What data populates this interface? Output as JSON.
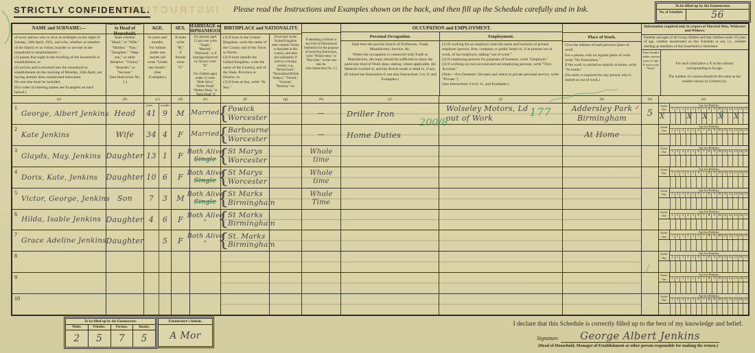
{
  "form": {
    "confidential": "STRICTLY CONFIDENTIAL.",
    "instruction": "Please read the Instructions and Examples shown on the back, and then fill up the Schedule carefully and in Ink.",
    "bleed_text": "INSTRUCTIONS",
    "schedule_box": {
      "title": "To be filled up by the Enumerator.",
      "label": "No. of Schedule.",
      "value": "56"
    },
    "brace": "{",
    "columns": {
      "name": {
        "title": "NAME and SURNAME:—",
        "desc": "of every person who is alive at midnight on the night of Sunday, 24th April, 1921, and who, whether as member of the family or as visitor, boarder or servant in the household or establishment:—\n(1) passes that night in the dwelling of the household or establishment, or\n(2) arrives and is received into the household or establishment on the morning of Monday, 25th April, not having already been enumerated elsewhere.\nNo one else must be included.\n(For order of entering names see Examples on back hereof.)"
      },
      "relationship": {
        "title": "RELATIONSHIP to Head of Household.",
        "desc": "State whether \"Head,\" or \"Wife,\" \"Mother,\" \"Son,\" \"Daughter,\" \"Step-son,\" or other Relative, \"Visitor,\" \"Boarder,\" or \"Servant.\"\n(See Instruction No. 1.)"
      },
      "age": {
        "title": "AGE.",
        "desc": "In years and months.\nFor infants under one month old write \"Under one month.\"\n(See Examples.)",
        "sub_years": "years.",
        "sub_months": "months."
      },
      "sex": {
        "title": "SEX.",
        "desc": "If male write \"M,\"\nif female write \"F.\""
      },
      "marriage": {
        "title": "MARRIAGE or ORPHANHOOD.",
        "desc": "For persons aged 15 and over write \"Single,\" \"Married,\" \"Widowed,\" or if marriage dissolved by divorce write \"D.\"\n—\nFor children aged under 15 write \"Both Alive,\" \"Father Dead,\" \"Mother Dead,\" or \"Both Dead\" if both parents be dead."
      },
      "birthplace_group": {
        "title": "BIRTHPLACE and NATIONALITY."
      },
      "birthplace": {
        "desc": "(1) If born in the United Kingdom, write the name of the County and of the Town or Parish.\n(2) If born outside the United Kingdom, write the name of the Country, and of the State, Province or District, or\n(3) If born at Sea, write \"At Sea.\""
      },
      "nationality": {
        "desc": "If not born in the United Kingdom state whether Visitor or Resident in this country, and state also nationality if born in a foreign country, e.g., \"British born,\" \"Naturalised British Subject,\" \"French,\" \"German,\" \"Russian,\" etc."
      },
      "education": {
        "desc": "If attending a School or any kind of Educational Institution for the purpose of receiving Instruction, write \"Whole-time,\" or \"Part-time,\" as the case may be.\n(See Instruction No. 2.)"
      },
      "occupation_group": {
        "title": "OCCUPATION and EMPLOYMENT."
      },
      "personal_occupation": {
        "title": "Personal Occupation.",
        "desc": "State here the precise branch of Profession, Trade, Manufacture, Service, &c.\nWhere the occupation is connected with Trade or Manufacture, the reply should be sufficient to show the particular kind of Work done, stating, where applicable, the Material worked in, and the Article made or dealt in, if any.\n(If retired see Instruction 6; see also Instructions 3 to 11 and Examples.)"
      },
      "employment": {
        "title": "Employment.",
        "desc": "(1) If working for an employer state the name and business of present employer (person, firm, company or public body) or, if at present out of work, of last employer, adding \"out of work.\"\n(2) If employing persons for purposes of business, write \"Employer.\"\n(3) If working on own account and not employing persons, write \"Own Account.\"\n(Note.—For Domestic Servants and others in private personal service, write \"Private.\")\n(See Instructions 3 to 8, 11, and Examples.)"
      },
      "place_of_work": {
        "title": "Place of Work.",
        "desc": "Give the address of each person's place of work.\nFor a person with no regular place of work write \"No fixed place.\"\nIf the work is carried on mainly at home, write \"At home.\"\n(No entry is required for any person who is retired or out of work.)"
      },
      "info": {
        "heading": "Information required only in respect of Married Men, Widowers and Widows.",
        "sub": "Number and ages of all living children and step children under 16 years of age, whether enumerated on this Schedule or not, i.e., whether residing as members of this household or elsewhere.",
        "total_label": "Total number under sixteen years of age. If none write \"None.\"",
        "note1": "For each child place a X in the column corresponding to its age.",
        "note2": "The number of crosses should be the same as the number shown in Column (n)."
      }
    },
    "letters": [
      "(a)",
      "(b)",
      "(c)",
      "(d)",
      "(e)",
      "(f)",
      "(g)",
      "(h)",
      "(i)",
      "(j)",
      "(k)",
      "(n)",
      "(o)"
    ],
    "age_grid": {
      "under": "Under One",
      "age_header": "Age last Birthday.",
      "numbers": [
        "1",
        "2",
        "3",
        "4",
        "5",
        "6",
        "7",
        "8",
        "9",
        "10",
        "11",
        "12",
        "13",
        "14",
        "15"
      ]
    }
  },
  "rows": [
    {
      "num": "1",
      "name": "George, Albert Jenkins",
      "rel": "Head",
      "years": "41",
      "months": "9",
      "sex": "M",
      "mar1": "Married",
      "mar2": "",
      "brace": "{",
      "birth1": "Powick",
      "birth2": "Worcester",
      "edu1": "—",
      "edu2": "",
      "occ": "Driller Iron",
      "occ_note": "200/8",
      "emp1": "Wolseley Motors, Ld",
      "emp2": "out of Work",
      "emp_note": "177",
      "place1": "Addersley Park",
      "place2": "Birmingham",
      "check": "✓",
      "total": "5",
      "crosses": [
        "u",
        "4",
        "7",
        "10",
        "13"
      ],
      "green_cross": "10"
    },
    {
      "num": "2",
      "name": "Kate Jenkins",
      "rel": "Wife",
      "years": "34",
      "months": "4",
      "sex": "F",
      "mar1": "Married",
      "mar2": "",
      "brace": "{",
      "birth1": "Barbourne",
      "birth2": "Worcester",
      "edu1": "—",
      "edu2": "",
      "occ": "Home Duties",
      "occ_note": "",
      "emp1": "",
      "emp2": "",
      "emp_note": "",
      "place1": "",
      "place2": "At Home",
      "check": "",
      "total": "",
      "crosses": [],
      "green_cross": ""
    },
    {
      "num": "3",
      "name": "Glayds, May. Jenkins",
      "rel": "Daughter",
      "years": "13",
      "months": "1",
      "sex": "F",
      "mar1": "Both Alive",
      "mar2": "Single",
      "brace": "{",
      "birth1": "St Marys",
      "birth2": "Worcester",
      "edu1": "Whole",
      "edu2": "time",
      "occ": "",
      "occ_note": "",
      "emp1": "",
      "emp2": "",
      "emp_note": "",
      "place1": "",
      "place2": "",
      "check": "",
      "total": "",
      "crosses": [],
      "green_cross": ""
    },
    {
      "num": "4",
      "name": "Doris, Kate, Jenkins",
      "rel": "Daughter",
      "years": "10",
      "months": "6",
      "sex": "F",
      "mar1": "Both Alive",
      "mar2": "Single",
      "brace": "{",
      "birth1": "St Marys",
      "birth2": "Worcester",
      "edu1": "Whole",
      "edu2": "time",
      "occ": "",
      "occ_note": "",
      "emp1": "",
      "emp2": "",
      "emp_note": "",
      "place1": "",
      "place2": "",
      "check": "",
      "total": "",
      "crosses": [],
      "green_cross": ""
    },
    {
      "num": "5",
      "name": "Victor, George, Jenkins",
      "rel": "Son",
      "years": "7",
      "months": "3",
      "sex": "M",
      "mar1": "Both Alive",
      "mar2": "Single",
      "brace": "{",
      "birth1": "St Marks",
      "birth2": "Birmingham",
      "edu1": "Whole",
      "edu2": "Time",
      "occ": "",
      "occ_note": "",
      "emp1": "",
      "emp2": "",
      "emp_note": "",
      "place1": "",
      "place2": "",
      "check": "",
      "total": "",
      "crosses": [],
      "green_cross": ""
    },
    {
      "num": "6",
      "name": "Hilda, Isable Jenkins",
      "rel": "Daughter",
      "years": "4",
      "months": "6",
      "sex": "F",
      "mar1": "Both Alive",
      "mar2": "\"",
      "brace": "{",
      "birth1": "St Marks",
      "birth2": "Birmingham",
      "edu1": "",
      "edu2": "",
      "occ": "",
      "occ_note": "",
      "emp1": "",
      "emp2": "",
      "emp_note": "",
      "place1": "",
      "place2": "",
      "check": "",
      "total": "",
      "crosses": [],
      "green_cross": ""
    },
    {
      "num": "7",
      "name": "Grace Adeline Jenkins",
      "rel": "Daughter",
      "years": "",
      "months": "5",
      "sex": "F",
      "mar1": "Both Alive",
      "mar2": "\"",
      "brace": "{",
      "birth1": "St. Marks",
      "birth2": "Birmingham",
      "edu1": "",
      "edu2": "",
      "occ": "",
      "occ_note": "",
      "emp1": "",
      "emp2": "",
      "emp_note": "",
      "place1": "",
      "place2": "",
      "check": "",
      "total": "",
      "crosses": [],
      "green_cross": ""
    },
    {
      "num": "8",
      "name": "",
      "rel": "",
      "years": "",
      "months": "",
      "sex": "",
      "mar1": "",
      "mar2": "",
      "brace": "",
      "birth1": "",
      "birth2": "",
      "edu1": "",
      "edu2": "",
      "occ": "",
      "occ_note": "",
      "emp1": "",
      "emp2": "",
      "emp_note": "",
      "place1": "",
      "place2": "",
      "check": "",
      "total": "",
      "crosses": [],
      "green_cross": ""
    },
    {
      "num": "9",
      "name": "",
      "rel": "",
      "years": "",
      "months": "",
      "sex": "",
      "mar1": "",
      "mar2": "",
      "brace": "",
      "birth1": "",
      "birth2": "",
      "edu1": "",
      "edu2": "",
      "occ": "",
      "occ_note": "",
      "emp1": "",
      "emp2": "",
      "emp_note": "",
      "place1": "",
      "place2": "",
      "check": "",
      "total": "",
      "crosses": [],
      "green_cross": ""
    },
    {
      "num": "10",
      "name": "",
      "rel": "",
      "years": "",
      "months": "",
      "sex": "",
      "mar1": "",
      "mar2": "",
      "brace": "",
      "birth1": "",
      "birth2": "",
      "edu1": "",
      "edu2": "",
      "occ": "",
      "occ_note": "",
      "emp1": "",
      "emp2": "",
      "emp_note": "",
      "place1": "",
      "place2": "",
      "check": "",
      "total": "",
      "crosses": [],
      "green_cross": ""
    }
  ],
  "enumerator": {
    "title": "To be filled up by the Enumerator.",
    "headers": [
      "Males.",
      "Females.",
      "Persons.",
      "Rooms."
    ],
    "values": [
      "2",
      "5",
      "7",
      "5"
    ],
    "initials_label": "Enumerator's Initials.",
    "initials": "A Mor"
  },
  "declaration": {
    "text": "I declare that this Schedule is correctly filled up to the best of my knowledge and belief.",
    "sig_label": "Signature",
    "signature": "George Albert Jenkins",
    "note": "(Head of Household, Manager of Establishment or other person responsible for making the return.)"
  },
  "colors": {
    "paper": "#d9d2a6",
    "ink": "#2b281f",
    "handwriting": "#44414b",
    "annotation_green": "#4f9d6b",
    "annotation_red": "#bf4a33"
  }
}
